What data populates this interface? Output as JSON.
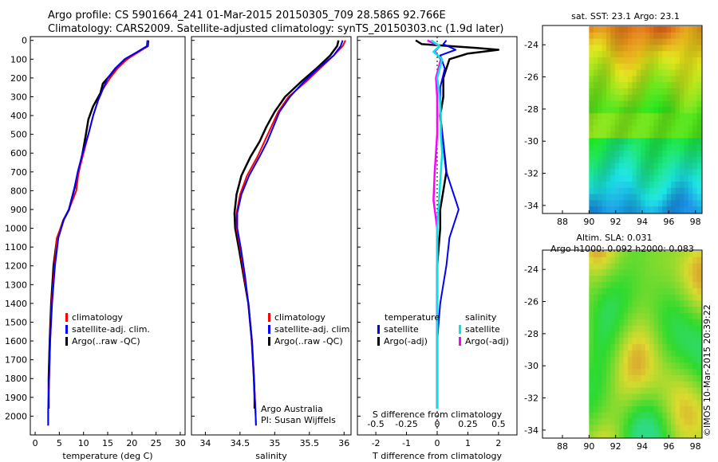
{
  "header": {
    "line1": "Argo profile: CS 5901664_241 01-Mar-2015 20150305_709 28.586S 92.766E",
    "line2": "Climatology: CARS2009. Satellite-adjusted climatology: synTS_20150303.nc (1.9d later)"
  },
  "colors": {
    "climatology": "#ff0000",
    "satellite": "#0000ff",
    "argo": "#000000",
    "cyan": "#00e5e5",
    "magenta": "#ff00ff"
  },
  "chart_data": [
    {
      "type": "line",
      "xlabel": "temperature (deg C)",
      "xlim": [
        -1,
        31
      ],
      "ylim": [
        2100,
        -20
      ],
      "xticks": [
        "0",
        "5",
        "10",
        "15",
        "20",
        "25",
        "30"
      ],
      "yticks": [
        "0",
        "100",
        "200",
        "300",
        "400",
        "500",
        "600",
        "700",
        "800",
        "900",
        "1000",
        "1100",
        "1200",
        "1300",
        "1400",
        "1500",
        "1600",
        "1700",
        "1800",
        "1900",
        "2000"
      ],
      "legend": [
        "climatology",
        "satellite-adj. clim.",
        "Argo(..raw -QC)"
      ],
      "series": [
        {
          "name": "climatology",
          "x": [
            23.3,
            23.2,
            21.5,
            19,
            17,
            15.5,
            14,
            13,
            12,
            11,
            10,
            9,
            8.5,
            7,
            6,
            4.5,
            4,
            3.4,
            3.1,
            2.9,
            2.7,
            2.7
          ],
          "y": [
            0,
            30,
            60,
            100,
            150,
            200,
            260,
            320,
            400,
            500,
            600,
            700,
            800,
            900,
            950,
            1050,
            1200,
            1400,
            1600,
            1800,
            1960,
            2050
          ]
        },
        {
          "name": "satellite-adj. clim.",
          "x": [
            23.2,
            23.1,
            21.2,
            18.5,
            16.5,
            15,
            14,
            13,
            12,
            11,
            9.8,
            8.8,
            8,
            7,
            6,
            4.8,
            4.1,
            3.5,
            3.1,
            2.9,
            2.7,
            2.7
          ],
          "y": [
            0,
            30,
            60,
            100,
            150,
            200,
            260,
            320,
            400,
            500,
            600,
            700,
            800,
            900,
            950,
            1050,
            1200,
            1400,
            1600,
            1800,
            1960,
            2050
          ]
        },
        {
          "name": "Argo(..raw -QC)",
          "x": [
            23.4,
            23.3,
            22,
            20,
            18,
            16.5,
            15,
            14,
            13.5,
            12,
            11,
            10.5,
            9.8,
            9,
            8,
            7,
            5.8,
            4.5,
            3.8,
            3.3,
            3.0,
            2.8,
            2.8
          ],
          "y": [
            0,
            30,
            50,
            80,
            120,
            160,
            200,
            230,
            280,
            350,
            420,
            500,
            600,
            700,
            800,
            900,
            960,
            1060,
            1200,
            1400,
            1600,
            1800,
            1960
          ]
        }
      ]
    },
    {
      "type": "line",
      "xlabel": "salinity",
      "xlim": [
        33.8,
        36.1
      ],
      "ylim": [
        2100,
        -20
      ],
      "xticks": [
        "34",
        "34.5",
        "35",
        "35.5",
        "36"
      ],
      "legend": [
        "climatology",
        "satellite-adj. clim.",
        "Argo(..raw -QC)"
      ],
      "annotation": [
        "Argo Australia",
        "PI: Susan Wijffels"
      ],
      "series": [
        {
          "name": "climatology",
          "x": [
            36.02,
            35.98,
            35.85,
            35.65,
            35.45,
            35.2,
            35.05,
            34.95,
            34.85,
            34.75,
            34.6,
            34.5,
            34.45,
            34.45,
            34.5,
            34.56,
            34.62,
            34.67,
            34.7,
            34.72,
            34.73
          ],
          "y": [
            0,
            30,
            80,
            150,
            220,
            300,
            380,
            460,
            540,
            620,
            720,
            820,
            920,
            1000,
            1100,
            1250,
            1400,
            1600,
            1800,
            1950,
            2050
          ]
        },
        {
          "name": "satellite-adj. clim.",
          "x": [
            35.98,
            35.95,
            35.85,
            35.62,
            35.42,
            35.22,
            35.07,
            34.98,
            34.89,
            34.78,
            34.63,
            34.52,
            34.46,
            34.46,
            34.51,
            34.57,
            34.62,
            34.67,
            34.7,
            34.72,
            34.73
          ],
          "y": [
            0,
            30,
            80,
            150,
            220,
            300,
            380,
            460,
            540,
            620,
            720,
            820,
            920,
            1000,
            1100,
            1250,
            1400,
            1600,
            1800,
            1950,
            2050
          ]
        },
        {
          "name": "Argo(..raw -QC)",
          "x": [
            35.92,
            35.9,
            35.8,
            35.6,
            35.38,
            35.15,
            35.0,
            34.88,
            34.78,
            34.65,
            34.52,
            34.45,
            34.42,
            34.43,
            34.48,
            34.55,
            34.62,
            34.67,
            34.7,
            34.71,
            34.71
          ],
          "y": [
            0,
            30,
            80,
            150,
            220,
            300,
            380,
            460,
            540,
            620,
            720,
            820,
            920,
            1000,
            1100,
            1250,
            1400,
            1600,
            1800,
            1900,
            1960
          ]
        }
      ]
    },
    {
      "type": "line",
      "xlabel": "T difference from climatology",
      "x2label": "S difference from climatology",
      "xlim": [
        -2.6,
        2.6
      ],
      "ylim": [
        2100,
        -20
      ],
      "xticks": [
        "-2",
        "-1",
        "0",
        "1",
        "2"
      ],
      "x2ticks": [
        "-0.5",
        "-0.25",
        "0",
        "0.25",
        "0.5"
      ],
      "legend_title_left": "temperature",
      "legend_title_right": "salinity",
      "legend_left": [
        "satellite",
        "Argo(-adj)"
      ],
      "legend_right": [
        "satellite",
        "Argo(-adj)"
      ],
      "series": [
        {
          "name": "temperature satellite",
          "x": [
            0.3,
            0.2,
            0.6,
            0.1,
            0.25,
            0.1,
            0.1,
            0.2,
            0.3,
            0.5,
            0.6,
            0.7,
            0.6,
            0.4,
            0.3,
            0.1,
            0.0,
            0.0,
            0.0
          ],
          "y": [
            0,
            20,
            50,
            80,
            150,
            250,
            400,
            550,
            700,
            800,
            850,
            900,
            950,
            1050,
            1200,
            1400,
            1600,
            1800,
            1960
          ]
        },
        {
          "name": "temperature Argo(-adj)",
          "x": [
            -0.7,
            -0.5,
            1.3,
            2.0,
            1.0,
            0.4,
            0.3,
            0.2,
            0.2,
            0.1,
            0.2,
            0.3,
            0.2,
            0.1,
            0.1,
            0.0,
            0.0,
            0.0,
            0.0
          ],
          "y": [
            0,
            20,
            40,
            50,
            70,
            100,
            150,
            200,
            300,
            400,
            550,
            700,
            800,
            900,
            1000,
            1200,
            1400,
            1600,
            1960
          ]
        },
        {
          "name": "salinity satellite",
          "x": [
            -0.05,
            0.02,
            -0.03,
            0.04,
            0.0,
            0.02,
            0.03,
            0.03,
            0.04,
            0.03,
            0.02,
            0.01,
            0.0,
            0.0,
            0.0
          ],
          "y": [
            0,
            30,
            60,
            100,
            200,
            300,
            400,
            500,
            600,
            700,
            800,
            900,
            1000,
            1500,
            1960
          ]
        },
        {
          "name": "salinity Argo(-adj)",
          "x": [
            -0.08,
            0.02,
            -0.02,
            0.03,
            -0.01,
            0.0,
            0.0,
            -0.02,
            -0.03,
            -0.02,
            -0.01,
            0.0,
            0.0,
            0.0
          ],
          "y": [
            0,
            30,
            60,
            100,
            200,
            300,
            500,
            700,
            850,
            900,
            950,
            1000,
            1500,
            1960
          ]
        }
      ]
    },
    {
      "type": "heatmap",
      "title": "sat. SST: 23.1  Argo: 23.1",
      "xticks": [
        "88",
        "90",
        "92",
        "94",
        "96",
        "98"
      ],
      "yticks": [
        "-24",
        "-26",
        "-28",
        "-30",
        "-32",
        "-34"
      ],
      "xlim": [
        86.5,
        98.5
      ],
      "ylim": [
        -34.5,
        -22.8
      ]
    },
    {
      "type": "heatmap",
      "title_line1": "Altim. SLA: 0.031",
      "title_line2": "Argo h1000: 0.092 h2000: 0.083",
      "xticks": [
        "88",
        "90",
        "92",
        "94",
        "96",
        "98"
      ],
      "yticks": [
        "-24",
        "-26",
        "-28",
        "-30",
        "-32",
        "-34"
      ],
      "xlim": [
        86.5,
        98.5
      ],
      "ylim": [
        -34.5,
        -22.8
      ]
    }
  ],
  "stamp": "©IMOS 10-Mar-2015 20:39:22"
}
